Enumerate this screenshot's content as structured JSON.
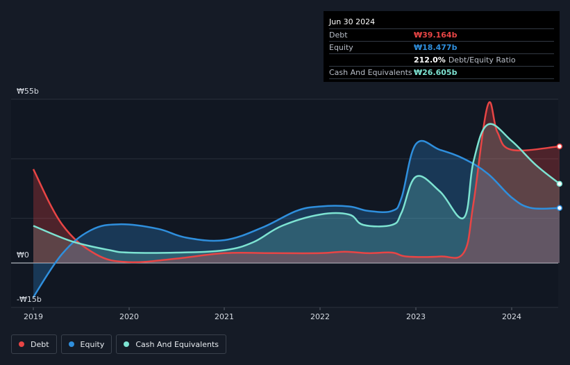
{
  "chart_data": {
    "type": "area",
    "title": "",
    "ylim": [
      -15,
      55
    ],
    "x_ticks": [
      "2019",
      "2020",
      "2021",
      "2022",
      "2023",
      "2024"
    ],
    "y_ticks": [
      {
        "value": 55,
        "label": "₩55b"
      },
      {
        "value": 0,
        "label": "₩0"
      },
      {
        "value": -15,
        "label": "-₩15b"
      }
    ],
    "series": [
      {
        "name": "Debt",
        "color": "#e84545",
        "points": [
          [
            2019.0,
            31.5
          ],
          [
            2019.3,
            13
          ],
          [
            2019.65,
            3
          ],
          [
            2020.0,
            0.3
          ],
          [
            2020.5,
            1.5
          ],
          [
            2021.0,
            3.3
          ],
          [
            2021.5,
            3.3
          ],
          [
            2022.0,
            3.3
          ],
          [
            2022.25,
            3.8
          ],
          [
            2022.5,
            3.3
          ],
          [
            2022.75,
            3.5
          ],
          [
            2022.9,
            2.2
          ],
          [
            2023.25,
            2.2
          ],
          [
            2023.5,
            3.5
          ],
          [
            2023.6,
            20
          ],
          [
            2023.75,
            53
          ],
          [
            2023.85,
            44
          ],
          [
            2024.0,
            38
          ],
          [
            2024.5,
            39.164
          ]
        ]
      },
      {
        "name": "Equity",
        "color": "#2f8fdd",
        "points": [
          [
            2019.0,
            -11.5
          ],
          [
            2019.3,
            3
          ],
          [
            2019.6,
            11
          ],
          [
            2019.9,
            13
          ],
          [
            2020.3,
            11.5
          ],
          [
            2020.6,
            8.5
          ],
          [
            2021.0,
            7.7
          ],
          [
            2021.4,
            12
          ],
          [
            2021.75,
            17.5
          ],
          [
            2022.0,
            19
          ],
          [
            2022.3,
            19
          ],
          [
            2022.5,
            17.5
          ],
          [
            2022.75,
            17.5
          ],
          [
            2022.85,
            22
          ],
          [
            2023.0,
            40
          ],
          [
            2023.25,
            38
          ],
          [
            2023.5,
            35
          ],
          [
            2023.75,
            30
          ],
          [
            2024.0,
            22
          ],
          [
            2024.2,
            18.5
          ],
          [
            2024.5,
            18.477
          ]
        ]
      },
      {
        "name": "Cash And Equivalents",
        "color": "#7de3d2",
        "points": [
          [
            2019.0,
            12.5
          ],
          [
            2019.4,
            7.3
          ],
          [
            2019.8,
            4.3
          ],
          [
            2020.0,
            3.5
          ],
          [
            2020.5,
            3.5
          ],
          [
            2021.0,
            4.3
          ],
          [
            2021.3,
            7
          ],
          [
            2021.6,
            12.5
          ],
          [
            2022.0,
            16.3
          ],
          [
            2022.3,
            16.3
          ],
          [
            2022.45,
            12.8
          ],
          [
            2022.75,
            12.8
          ],
          [
            2022.85,
            17
          ],
          [
            2023.0,
            29
          ],
          [
            2023.25,
            24
          ],
          [
            2023.5,
            15.2
          ],
          [
            2023.6,
            34
          ],
          [
            2023.75,
            46.5
          ],
          [
            2024.0,
            41
          ],
          [
            2024.25,
            33
          ],
          [
            2024.5,
            26.605
          ]
        ]
      }
    ],
    "tooltip": {
      "date": "Jun 30 2024",
      "rows": [
        {
          "label": "Debt",
          "value": "₩39.164b",
          "color": "#e84545"
        },
        {
          "label": "Equity",
          "value": "₩18.477b",
          "color": "#2f8fdd"
        },
        {
          "label": "",
          "value": "212.0%",
          "extra": "Debt/Equity Ratio",
          "color": "#ffffff"
        },
        {
          "label": "Cash And Equivalents",
          "value": "₩26.605b",
          "color": "#7de3d2"
        }
      ]
    },
    "legend": [
      "Debt",
      "Equity",
      "Cash And Equivalents"
    ]
  }
}
